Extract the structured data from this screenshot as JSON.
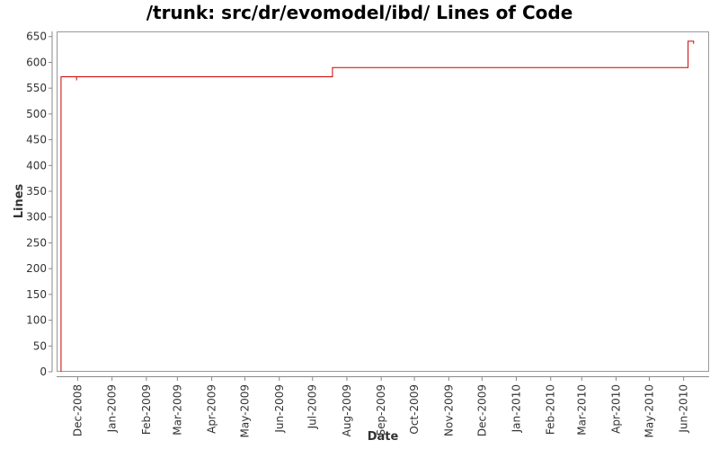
{
  "chart_data": {
    "type": "line",
    "title": "/trunk: src/dr/evomodel/ibd/ Lines of Code",
    "xlabel": "Date",
    "ylabel": "Lines",
    "ylim": [
      0,
      660
    ],
    "xlim": [
      "2008-11-12",
      "2010-06-24"
    ],
    "y_ticks": [
      0,
      50,
      100,
      150,
      200,
      250,
      300,
      350,
      400,
      450,
      500,
      550,
      600,
      650
    ],
    "x_ticks": [
      {
        "date": "2008-12-01",
        "label": "Dec-2008"
      },
      {
        "date": "2009-01-01",
        "label": "Jan-2009"
      },
      {
        "date": "2009-02-01",
        "label": "Feb-2009"
      },
      {
        "date": "2009-03-01",
        "label": "Mar-2009"
      },
      {
        "date": "2009-04-01",
        "label": "Apr-2009"
      },
      {
        "date": "2009-05-01",
        "label": "May-2009"
      },
      {
        "date": "2009-06-01",
        "label": "Jun-2009"
      },
      {
        "date": "2009-07-01",
        "label": "Jul-2009"
      },
      {
        "date": "2009-08-01",
        "label": "Aug-2009"
      },
      {
        "date": "2009-09-01",
        "label": "Sep-2009"
      },
      {
        "date": "2009-10-01",
        "label": "Oct-2009"
      },
      {
        "date": "2009-11-01",
        "label": "Nov-2009"
      },
      {
        "date": "2009-12-01",
        "label": "Dec-2009"
      },
      {
        "date": "2010-01-01",
        "label": "Jan-2010"
      },
      {
        "date": "2010-02-01",
        "label": "Feb-2010"
      },
      {
        "date": "2010-03-01",
        "label": "Mar-2010"
      },
      {
        "date": "2010-04-01",
        "label": "Apr-2010"
      },
      {
        "date": "2010-05-01",
        "label": "May-2010"
      },
      {
        "date": "2010-06-01",
        "label": "Jun-2010"
      }
    ],
    "grid": false,
    "legend": "none",
    "series": [
      {
        "color": "#cc0000",
        "step": true,
        "points": [
          {
            "x": "2008-11-16",
            "y": 0
          },
          {
            "x": "2008-11-16",
            "y": 572
          },
          {
            "x": "2008-11-30",
            "y": 572
          },
          {
            "x": "2008-11-30",
            "y": 565
          },
          {
            "x": "2008-11-30",
            "y": 572
          },
          {
            "x": "2009-07-19",
            "y": 572
          },
          {
            "x": "2009-07-19",
            "y": 590
          },
          {
            "x": "2010-06-05",
            "y": 590
          },
          {
            "x": "2010-06-05",
            "y": 641
          },
          {
            "x": "2010-06-10",
            "y": 641
          },
          {
            "x": "2010-06-10",
            "y": 636
          }
        ]
      }
    ]
  }
}
